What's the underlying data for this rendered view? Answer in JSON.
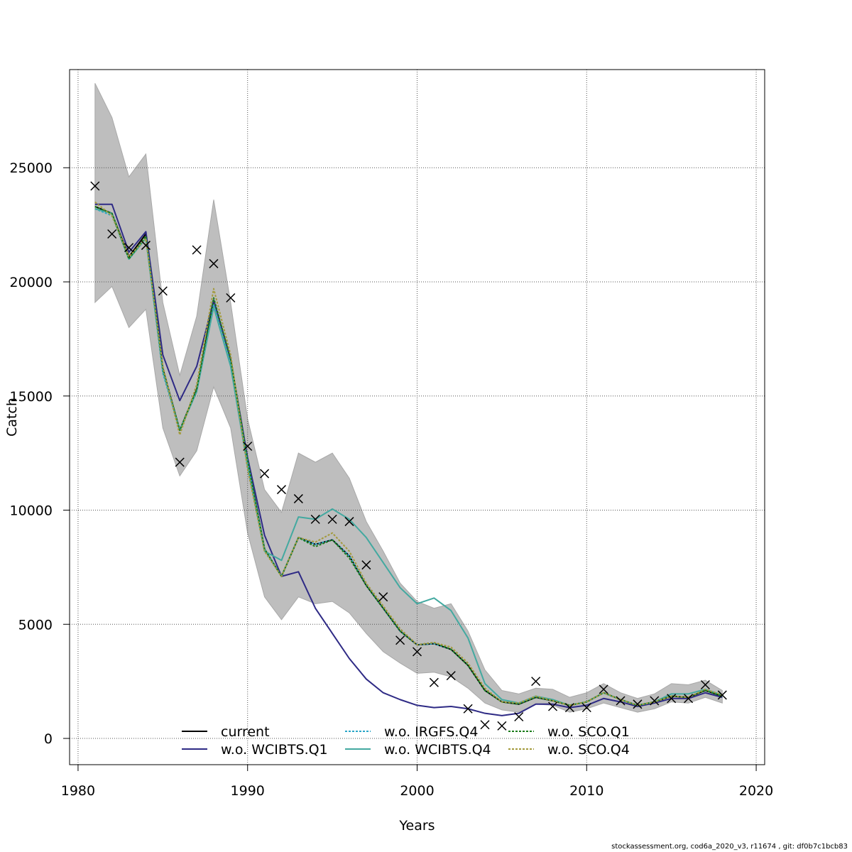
{
  "chart_data": {
    "type": "line",
    "xlabel": "Years",
    "ylabel": "Catch",
    "xlim": [
      1979.5,
      2020.5
    ],
    "ylim": [
      -1150,
      29300
    ],
    "x_ticks": [
      1980,
      1990,
      2000,
      2010,
      2020
    ],
    "y_ticks": [
      0,
      5000,
      10000,
      15000,
      20000,
      25000
    ],
    "grid": true,
    "grid_style": "dotted",
    "legend_position": "bottom-center",
    "legend_labels": [
      "current",
      "w.o. WCIBTS.Q1",
      "w.o. IRGFS.Q4",
      "w.o. WCIBTS.Q4",
      "w.o. SCO.Q1",
      "w.o. SCO.Q4"
    ],
    "years": [
      1981,
      1982,
      1983,
      1984,
      1985,
      1986,
      1987,
      1988,
      1989,
      1990,
      1991,
      1992,
      1993,
      1994,
      1995,
      1996,
      1997,
      1998,
      1999,
      2000,
      2001,
      2002,
      2003,
      2004,
      2005,
      2006,
      2007,
      2008,
      2009,
      2010,
      2011,
      2012,
      2013,
      2014,
      2015,
      2016,
      2017,
      2018
    ],
    "confidence_band": {
      "color": "#bebebe",
      "upper": [
        28700,
        27200,
        24600,
        25600,
        19100,
        15900,
        18500,
        23600,
        19100,
        14000,
        10900,
        9900,
        12500,
        12100,
        12500,
        11400,
        9500,
        8200,
        6800,
        6000,
        5700,
        5900,
        4700,
        3000,
        2100,
        1950,
        2200,
        2150,
        1800,
        2000,
        2400,
        2000,
        1750,
        1950,
        2400,
        2350,
        2550,
        2100
      ],
      "lower": [
        19100,
        19800,
        18000,
        18800,
        13600,
        11500,
        12600,
        15400,
        13600,
        9000,
        6200,
        5200,
        6200,
        5900,
        6000,
        5500,
        4600,
        3800,
        3300,
        2850,
        2900,
        2700,
        2200,
        1550,
        1250,
        1150,
        1500,
        1450,
        1150,
        1300,
        1550,
        1350,
        1150,
        1300,
        1600,
        1550,
        1800,
        1550
      ]
    },
    "series": [
      {
        "name": "current",
        "color": "#000000",
        "dashed": false,
        "values": [
          23300,
          23000,
          21100,
          22100,
          16200,
          13500,
          15300,
          19200,
          16600,
          12200,
          8300,
          7100,
          8800,
          8500,
          8700,
          8000,
          6700,
          5700,
          4700,
          4100,
          4150,
          3900,
          3200,
          2100,
          1600,
          1500,
          1800,
          1650,
          1450,
          1600,
          2000,
          1700,
          1450,
          1600,
          1850,
          1800,
          2100,
          1850
        ]
      },
      {
        "name": "w.o. WCIBTS.Q1",
        "color": "#2e2a85",
        "dashed": false,
        "values": [
          23400,
          23400,
          21300,
          22200,
          16800,
          14800,
          16300,
          19200,
          16600,
          12300,
          8900,
          7100,
          7300,
          5700,
          4600,
          3500,
          2600,
          2000,
          1700,
          1450,
          1350,
          1400,
          1300,
          1100,
          1000,
          1100,
          1500,
          1500,
          1350,
          1450,
          1750,
          1600,
          1400,
          1550,
          1750,
          1750,
          2000,
          1800
        ]
      },
      {
        "name": "w.o. IRGFS.Q4",
        "color": "#2aa5c8",
        "dashed": true,
        "values": [
          23200,
          22900,
          21000,
          21900,
          16000,
          13500,
          15200,
          19000,
          16400,
          12100,
          8300,
          7100,
          8800,
          8500,
          8700,
          8000,
          6700,
          5700,
          4700,
          4100,
          4150,
          3900,
          3200,
          2100,
          1600,
          1500,
          1800,
          1650,
          1450,
          1600,
          2000,
          1700,
          1450,
          1600,
          1850,
          1800,
          2100,
          1850
        ]
      },
      {
        "name": "w.o. WCIBTS.Q4",
        "color": "#43a9a0",
        "dashed": false,
        "values": [
          23200,
          23000,
          21000,
          21900,
          16100,
          13500,
          15200,
          18900,
          16300,
          11900,
          8200,
          7800,
          9700,
          9600,
          10050,
          9600,
          8800,
          7700,
          6600,
          5900,
          6150,
          5600,
          4400,
          2400,
          1700,
          1550,
          1850,
          1700,
          1450,
          1600,
          2000,
          1700,
          1450,
          1600,
          1950,
          1950,
          2150,
          1900
        ]
      },
      {
        "name": "w.o. SCO.Q1",
        "color": "#1a7a1a",
        "dashed": true,
        "values": [
          23300,
          23000,
          21000,
          22000,
          16200,
          13500,
          15300,
          19300,
          16600,
          12200,
          8300,
          7100,
          8800,
          8400,
          8700,
          7900,
          6700,
          5700,
          4700,
          4100,
          4200,
          3900,
          3200,
          2100,
          1600,
          1500,
          1800,
          1650,
          1450,
          1600,
          2000,
          1700,
          1450,
          1600,
          1850,
          1800,
          2100,
          1850
        ]
      },
      {
        "name": "w.o. SCO.Q4",
        "color": "#a39a3c",
        "dashed": true,
        "values": [
          23500,
          22900,
          21100,
          21900,
          16300,
          13300,
          15500,
          19700,
          16800,
          11800,
          8200,
          7100,
          8800,
          8600,
          9000,
          8200,
          6800,
          5800,
          4800,
          4100,
          4200,
          4000,
          3300,
          2200,
          1600,
          1550,
          1850,
          1650,
          1450,
          1600,
          2000,
          1700,
          1450,
          1600,
          1850,
          1800,
          2150,
          1900
        ]
      }
    ],
    "observed": {
      "marker": "x",
      "values": [
        24200,
        22100,
        21500,
        21600,
        19600,
        12100,
        21400,
        20800,
        19300,
        12800,
        11600,
        10900,
        10500,
        9600,
        9600,
        9500,
        7600,
        6200,
        4300,
        3800,
        2450,
        2750,
        1300,
        600,
        550,
        950,
        2500,
        1400,
        1350,
        1350,
        2150,
        1650,
        1500,
        1650,
        1750,
        1750,
        2350,
        1900
      ]
    }
  },
  "footer_text": "stockassessment.org, cod6a_2020_v3, r11674 , git: df0b7c1bcb83"
}
